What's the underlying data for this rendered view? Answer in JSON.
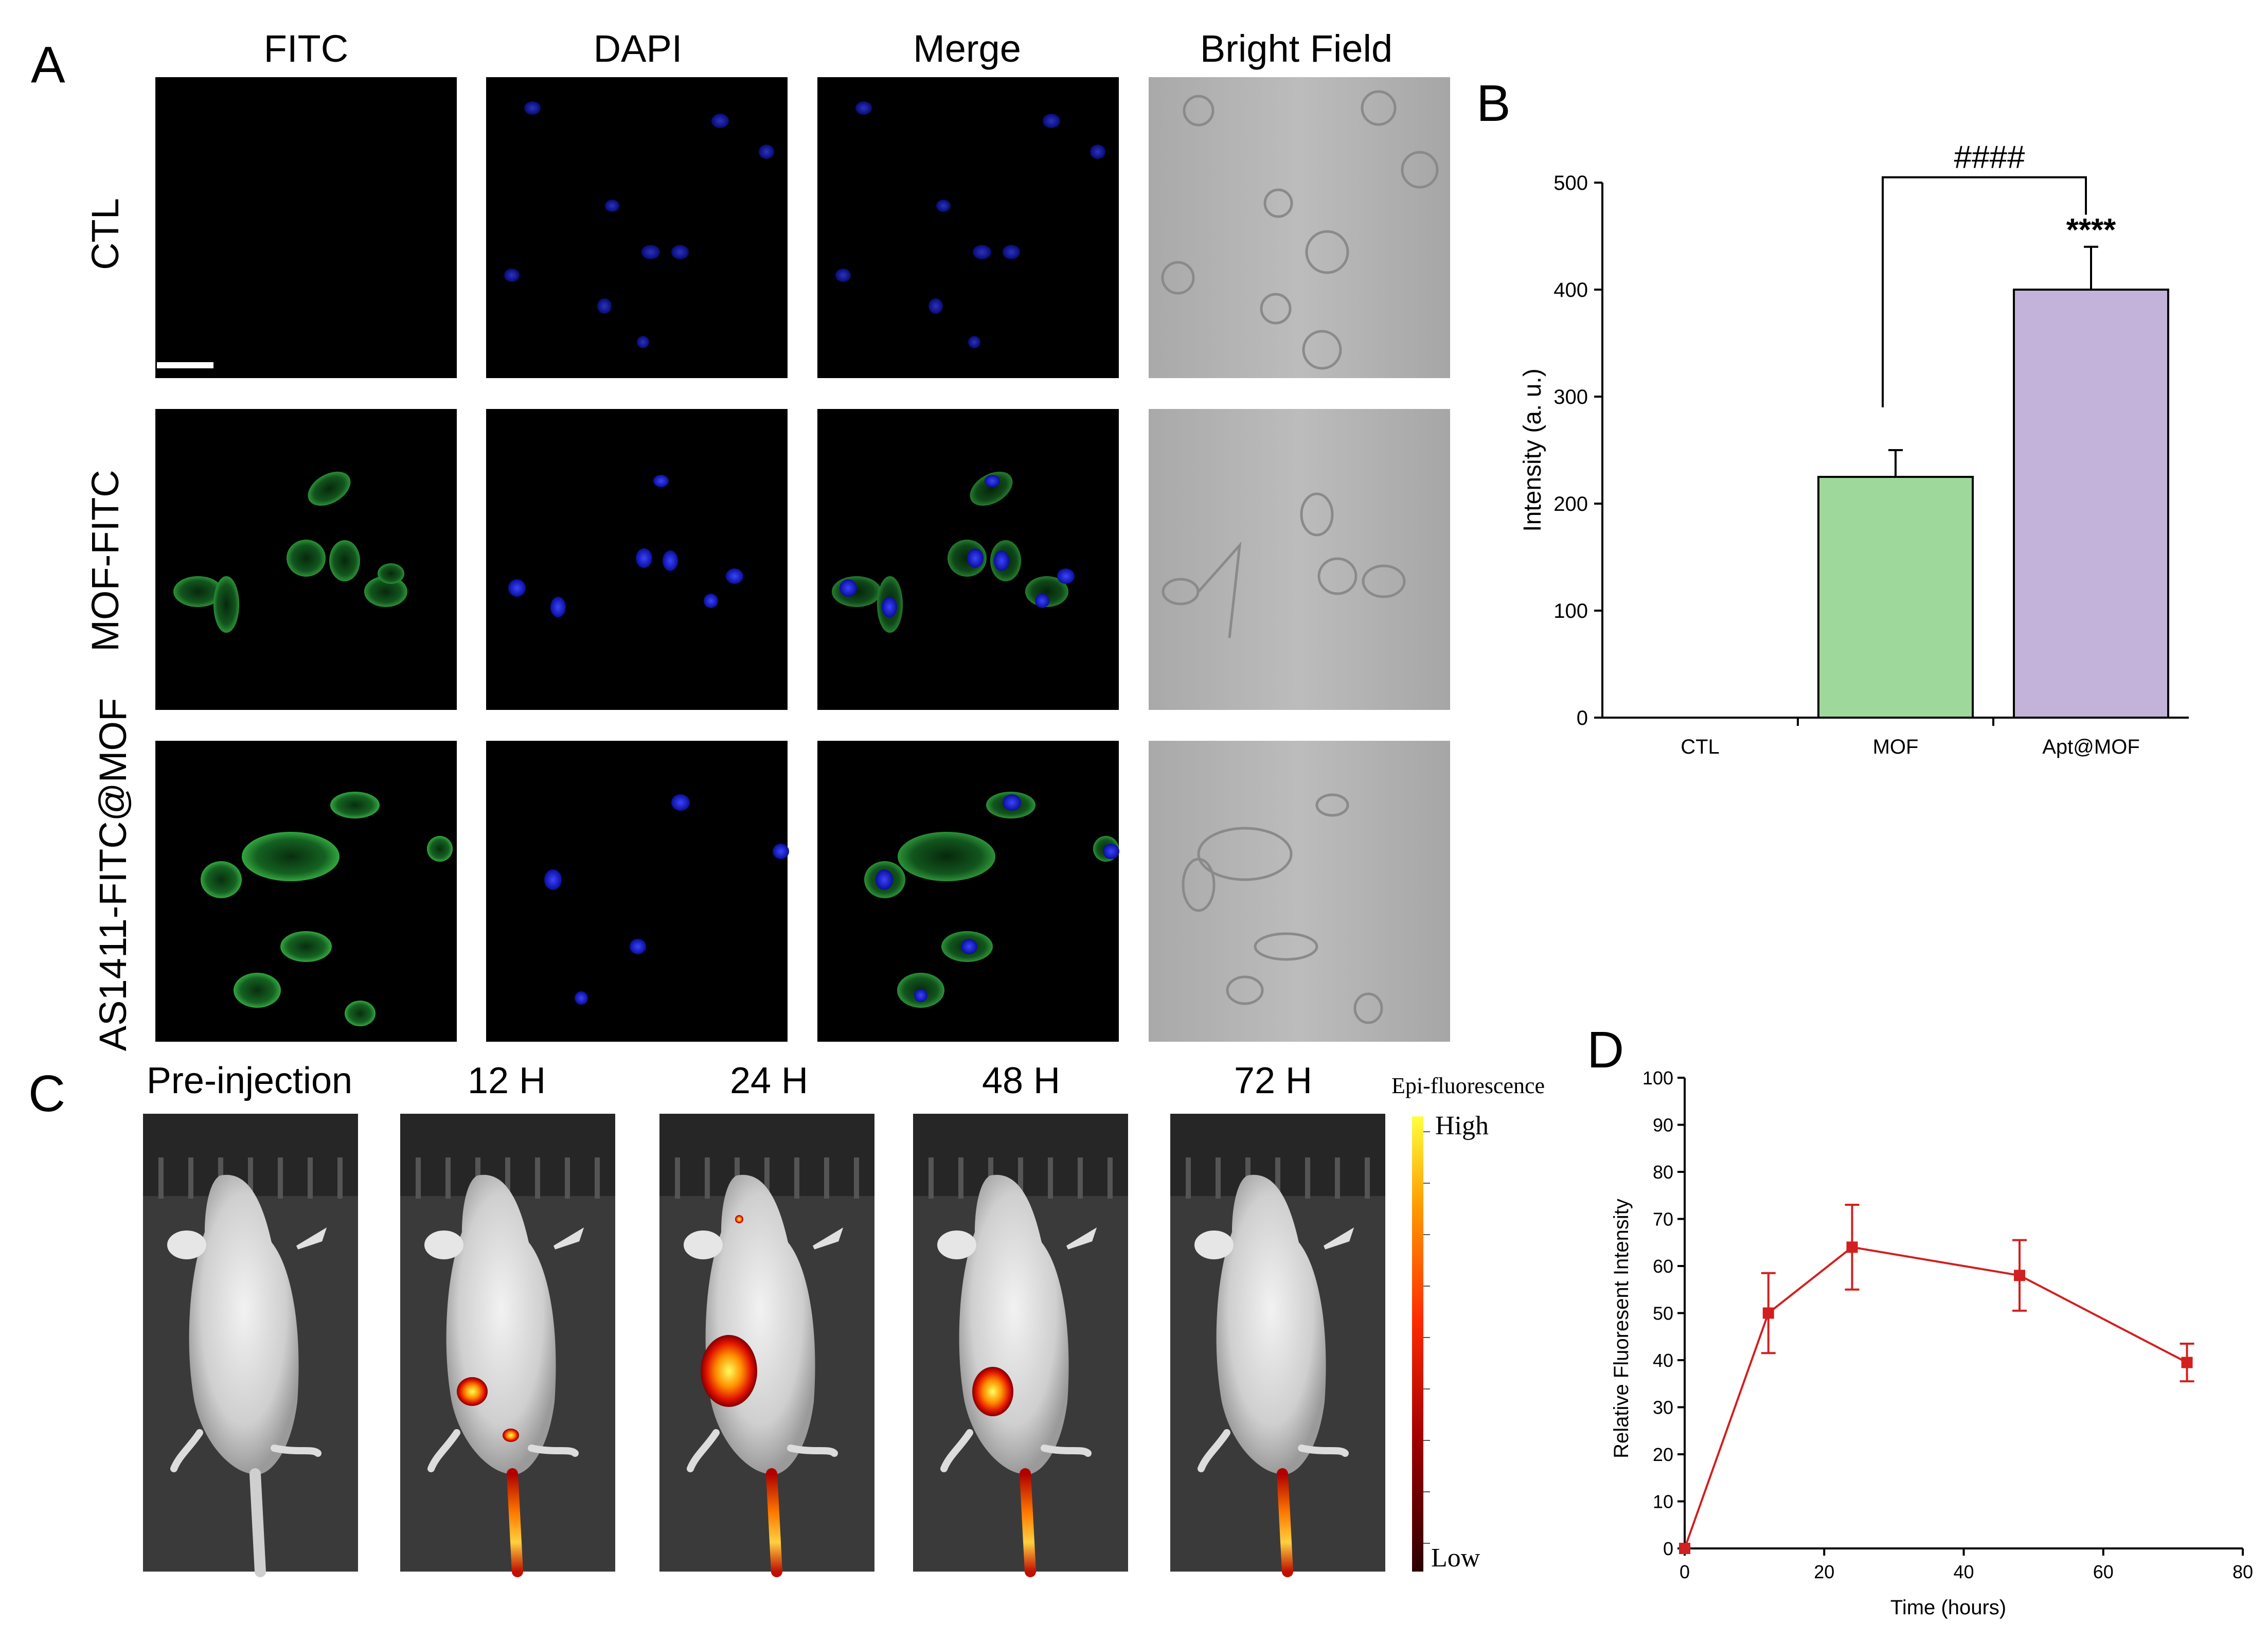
{
  "panelA": {
    "letter": "A",
    "columns": [
      "FITC",
      "DAPI",
      "Merge",
      "Bright Field"
    ],
    "rows": [
      "CTL",
      "MOF-FITC",
      "AS1411-FITC@MOF"
    ]
  },
  "panelB": {
    "letter": "B",
    "chart_data": {
      "type": "bar",
      "categories": [
        "CTL",
        "MOF",
        "Apt@MOF"
      ],
      "values": [
        0,
        225,
        400
      ],
      "errors": [
        0,
        25,
        40
      ],
      "colors": [
        "#ffffff",
        "#9ed89a",
        "#c3b3da"
      ],
      "ylabel": "Intensity (a. u.)",
      "ylim": [
        0,
        500
      ],
      "yticks": [
        0,
        100,
        200,
        300,
        400,
        500
      ],
      "annotations": {
        "bracket": "####",
        "stars": "****"
      }
    }
  },
  "panelC": {
    "letter": "C",
    "timepoints": [
      "Pre-injection",
      "12 H",
      "24 H",
      "48 H",
      "72 H"
    ],
    "colorbar": {
      "title": "Epi-fluorescence",
      "high": "High",
      "low": "Low"
    }
  },
  "panelD": {
    "letter": "D",
    "chart_data": {
      "type": "line",
      "x": [
        0,
        12,
        24,
        48,
        72
      ],
      "y": [
        0,
        50,
        64,
        58,
        39.5
      ],
      "errors": [
        0,
        8.5,
        9,
        7.5,
        4
      ],
      "xlabel": "Time (hours)",
      "ylabel": "Relative Fluoresent Intensity",
      "xlim": [
        0,
        80
      ],
      "ylim": [
        0,
        100
      ],
      "xticks": [
        0,
        20,
        40,
        60,
        80
      ],
      "yticks": [
        0,
        10,
        20,
        30,
        40,
        50,
        60,
        70,
        80,
        90,
        100
      ],
      "color": "#d21f1f"
    }
  }
}
